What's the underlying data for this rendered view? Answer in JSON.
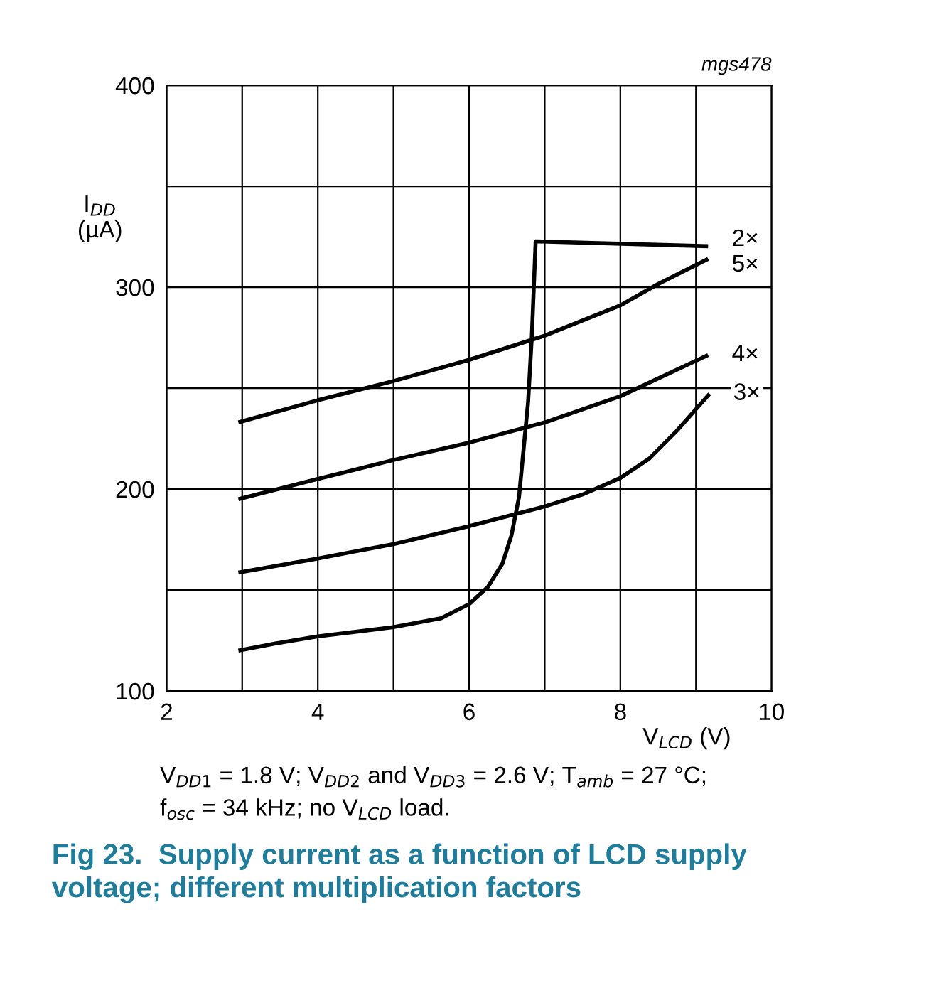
{
  "chart_data": {
    "type": "line",
    "title": "Fig 23.  Supply current as a function of LCD supply\nvoltage; different multiplication factors",
    "xlabel": "V$_{LCD}$ (V)",
    "ylabel": "I$_{DD}$\n(µA)",
    "annotations": [
      "mgs478",
      "V$_{DD1}$ = 1.8 V; V$_{DD2}$ and V$_{DD3}$ = 2.6 V; T$_{amb}$ = 27 °C;\nf$_{osc}$ = 34 kHz; no V$_{LCD}$ load."
    ],
    "series": [
      {
        "name": "2×",
        "color": "#000000",
        "x": [
          2.95,
          3.44,
          4,
          5,
          5.63,
          6,
          6.25,
          6.44,
          6.56,
          6.66,
          6.72,
          6.78,
          6.83,
          6.88,
          9.16
        ],
        "values": [
          120,
          123.5,
          127,
          131.6,
          136,
          143,
          151.6,
          163,
          177,
          196,
          219.5,
          243,
          276,
          322.7,
          320.3
        ]
      },
      {
        "name": "5×",
        "color": "#000000",
        "x": [
          2.95,
          4,
          5,
          6,
          7,
          8,
          8.5,
          9.16
        ],
        "values": [
          233,
          244,
          253.5,
          264,
          276,
          291,
          301.6,
          314
        ]
      },
      {
        "name": "4×",
        "color": "#000000",
        "x": [
          2.95,
          4,
          5,
          6,
          7,
          8,
          9.16
        ],
        "values": [
          195,
          205,
          214.4,
          223,
          233,
          246,
          266.4
        ]
      },
      {
        "name": "3×",
        "color": "#000000",
        "x": [
          2.95,
          4,
          5,
          6,
          7,
          7.5,
          8,
          8.38,
          8.75,
          9.18
        ],
        "values": [
          158.6,
          165.6,
          172.7,
          181.6,
          191.4,
          197.3,
          205.5,
          215,
          229,
          247.2
        ]
      }
    ],
    "xlim": [
      2,
      10
    ],
    "ylim": [
      100,
      400
    ],
    "xticks": [
      2,
      {
        "value": 3,
        "label": null
      },
      4,
      {
        "value": 5,
        "label": null
      },
      6,
      {
        "value": 7,
        "label": null
      },
      8,
      {
        "value": 9,
        "label": null
      },
      10
    ],
    "yticks": [
      100,
      {
        "value": 150,
        "label": null
      },
      200,
      {
        "value": 250,
        "label": null
      },
      300,
      {
        "value": 350,
        "label": null
      },
      400
    ],
    "grid": true,
    "legend": false,
    "marker": "none",
    "line_style": "solid"
  }
}
